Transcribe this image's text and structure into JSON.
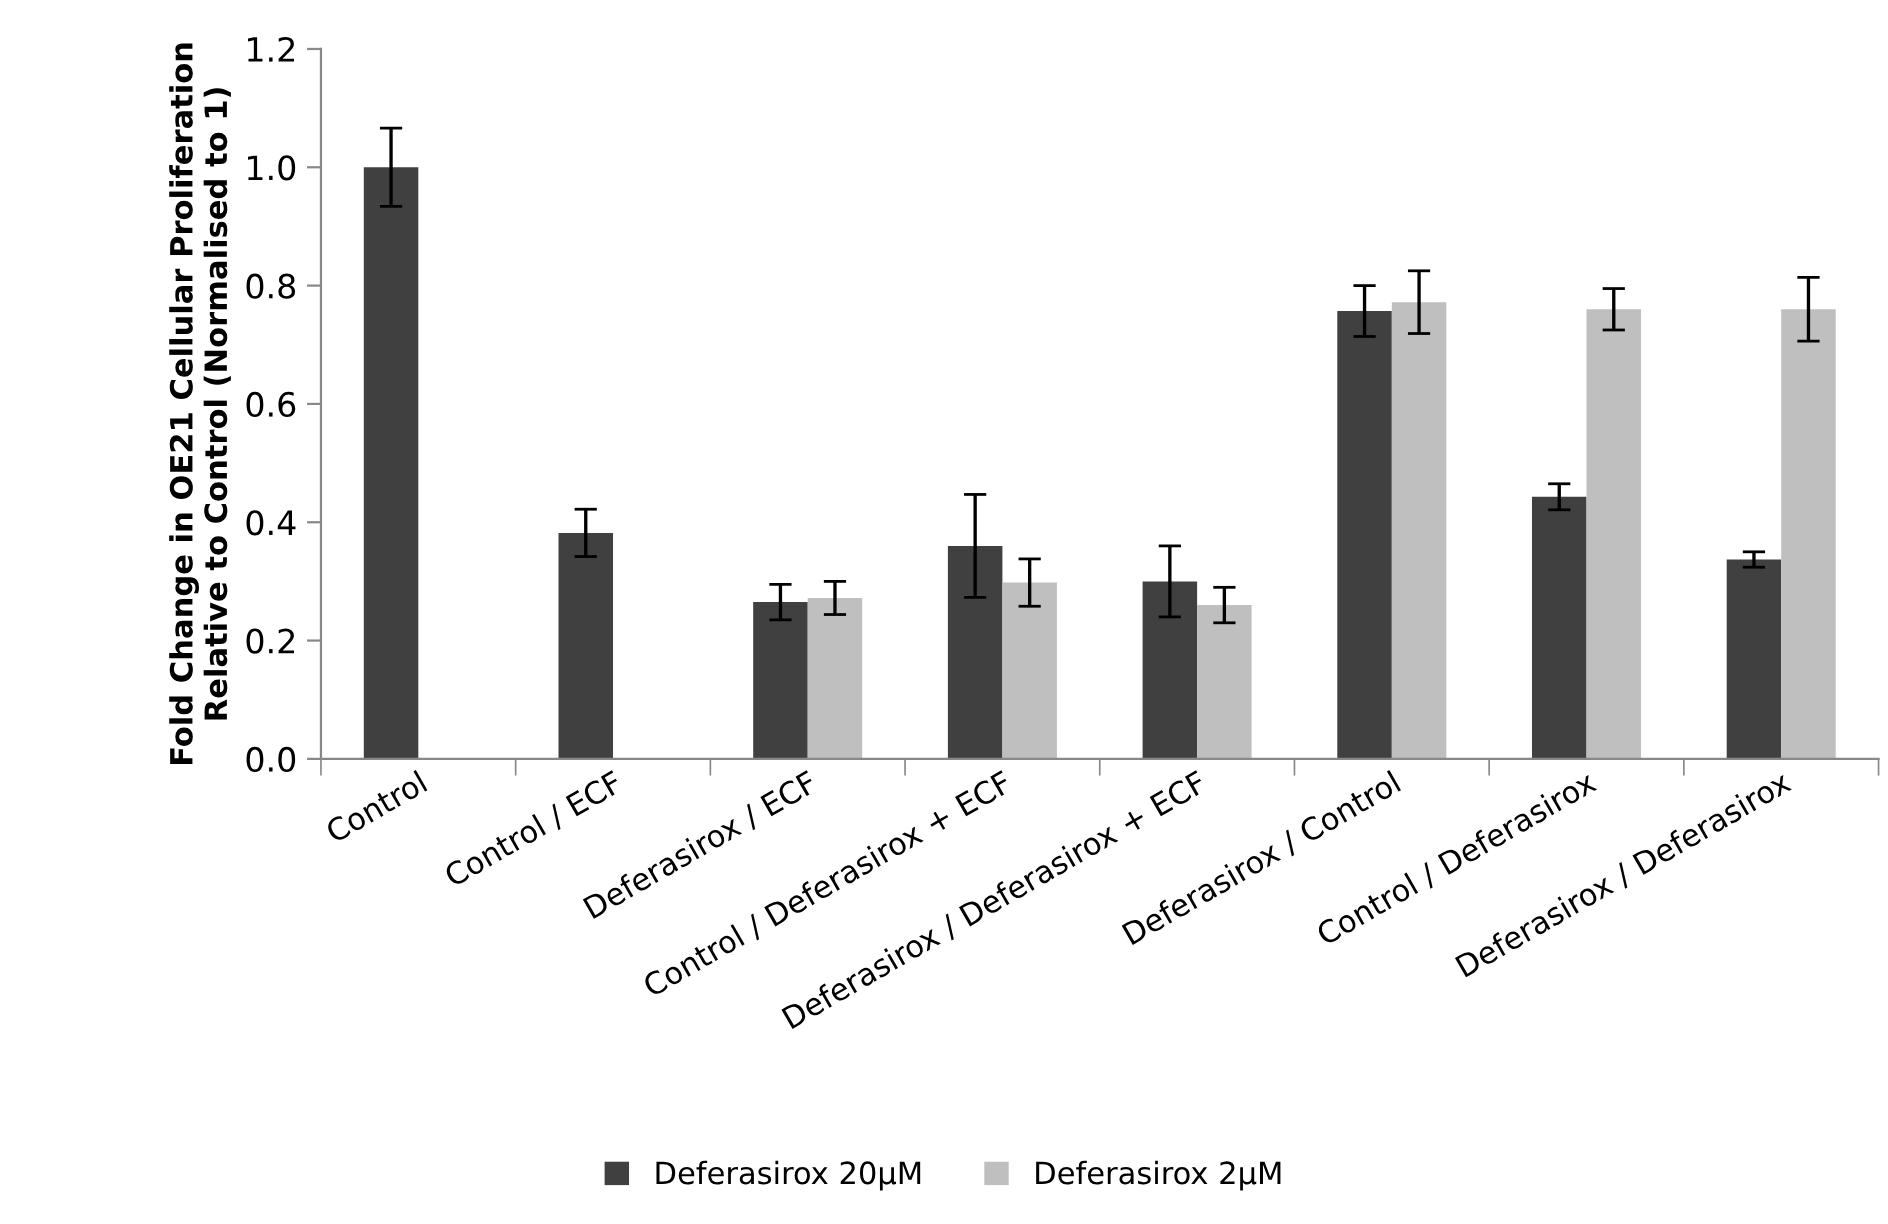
{
  "chart_data": {
    "type": "bar",
    "ylabel": "Fold Change in OE21 Cellular Proliferation Relative to Control (Normalised to 1)",
    "categories": [
      "Control",
      "Control / ECF",
      "Deferasirox / ECF",
      "Control / Deferasirox + ECF",
      "Deferasirox / Deferasirox + ECF",
      "Deferasirox / Control",
      "Control / Deferasirox",
      "Deferasirox / Deferasirox"
    ],
    "series": [
      {
        "name": "Deferasirox 20µM",
        "color": "#404040",
        "values": [
          1.0,
          0.382,
          0.265,
          0.36,
          0.3,
          0.757,
          0.443,
          0.337
        ],
        "errors": [
          0.066,
          0.04,
          0.03,
          0.087,
          0.06,
          0.043,
          0.022,
          0.013
        ]
      },
      {
        "name": "Deferasirox 2µM",
        "color": "#bfbfbf",
        "values": [
          null,
          null,
          0.272,
          0.298,
          0.26,
          0.772,
          0.76,
          0.76
        ],
        "errors": [
          null,
          null,
          0.028,
          0.04,
          0.03,
          0.053,
          0.035,
          0.054
        ]
      }
    ],
    "ylim": [
      0,
      1.2
    ],
    "yticks": [
      {
        "value": 0,
        "label": "0.0"
      },
      {
        "value": 0.2,
        "label": "0.2"
      },
      {
        "value": 0.4,
        "label": "0.4"
      },
      {
        "value": 0.6,
        "label": "0.6"
      },
      {
        "value": 0.8,
        "label": "0.8"
      },
      {
        "value": 1.0,
        "label": "1.0"
      },
      {
        "value": 1.2,
        "label": "1.2"
      }
    ],
    "grid": false,
    "legend": "bottom"
  }
}
